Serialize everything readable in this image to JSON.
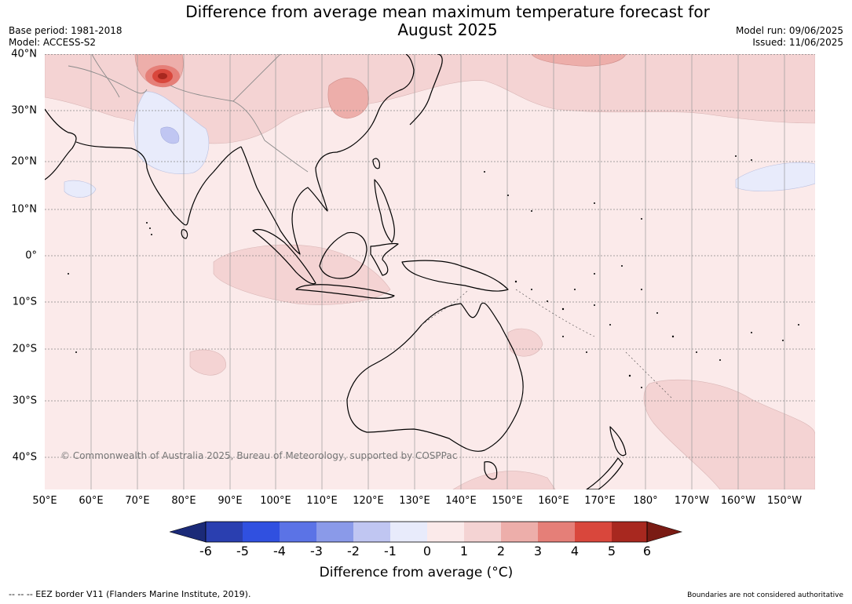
{
  "title_line1": "Difference from average mean maximum temperature forecast for",
  "title_line2": "August 2025",
  "meta_left": [
    "Base period: 1981-2018",
    "Model: ACCESS-S2"
  ],
  "meta_right": [
    "Model run: 09/06/2025",
    "Issued: 11/06/2025"
  ],
  "copyright": "© Commonwealth of Australia 2025, Bureau of Meteorology, supported by COSPPac",
  "lat_labels": [
    "40°N",
    "30°N",
    "20°N",
    "10°N",
    "0°",
    "10°S",
    "20°S",
    "30°S",
    "40°S"
  ],
  "lon_labels": [
    "50°E",
    "60°E",
    "70°E",
    "80°E",
    "90°E",
    "100°E",
    "110°E",
    "120°E",
    "130°E",
    "140°E",
    "150°E",
    "160°E",
    "170°E",
    "180°",
    "170°W",
    "160°W",
    "150°W"
  ],
  "colorbar": {
    "title": "Difference from average (°C)",
    "ticks": [
      "-6",
      "-5",
      "-4",
      "-3",
      "-2",
      "-1",
      "0",
      "1",
      "2",
      "3",
      "4",
      "5",
      "6"
    ],
    "colors": [
      "#1b2a78",
      "#2a3fb0",
      "#3050e0",
      "#5b73e6",
      "#8a9ae9",
      "#c0c6f2",
      "#e8ebfb",
      "#fbeaea",
      "#f4d3d3",
      "#edaeaa",
      "#e57f78",
      "#d9473c",
      "#a8281f",
      "#7a1b14"
    ]
  },
  "footnote_left": "--  --  -- EEZ border V11 (Flanders Marine Institute, 2019).",
  "footnote_right": "Boundaries are not considered authoritative"
}
